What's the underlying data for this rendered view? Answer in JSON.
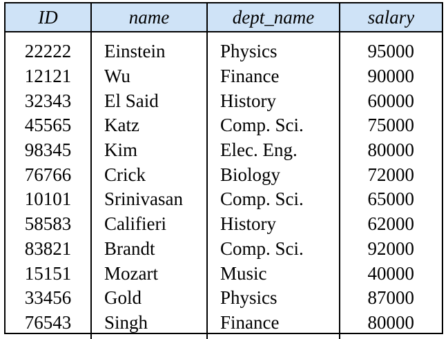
{
  "table": {
    "headers": [
      "ID",
      "name",
      "dept_name",
      "salary"
    ],
    "rows": [
      [
        "22222",
        "Einstein",
        "Physics",
        "95000"
      ],
      [
        "12121",
        "Wu",
        "Finance",
        "90000"
      ],
      [
        "32343",
        "El Said",
        "History",
        "60000"
      ],
      [
        "45565",
        "Katz",
        "Comp. Sci.",
        "75000"
      ],
      [
        "98345",
        "Kim",
        "Elec. Eng.",
        "80000"
      ],
      [
        "76766",
        "Crick",
        "Biology",
        "72000"
      ],
      [
        "10101",
        "Srinivasan",
        "Comp. Sci.",
        "65000"
      ],
      [
        "58583",
        "Califieri",
        "History",
        "62000"
      ],
      [
        "83821",
        "Brandt",
        "Comp. Sci.",
        "92000"
      ],
      [
        "15151",
        "Mozart",
        "Music",
        "40000"
      ],
      [
        "33456",
        "Gold",
        "Physics",
        "87000"
      ],
      [
        "76543",
        "Singh",
        "Finance",
        "80000"
      ]
    ]
  },
  "colors": {
    "header_background": "#cfe3f7",
    "border": "#000000"
  }
}
